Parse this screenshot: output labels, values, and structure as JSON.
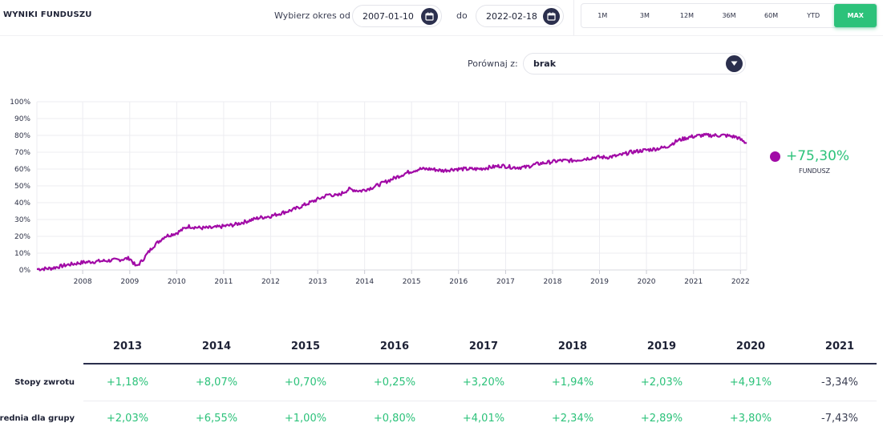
{
  "header": {
    "title": "WYNIKI FUNDUSZU",
    "period_from_label": "Wybierz okres od",
    "date_from": "2007-01-10",
    "to_label": "do",
    "date_to": "2022-02-18",
    "periods": [
      "1M",
      "3M",
      "12M",
      "36M",
      "60M",
      "YTD",
      "MAX"
    ],
    "active_period": "MAX"
  },
  "compare": {
    "label": "Porównaj z:",
    "value": "brak"
  },
  "legend": {
    "value": "+75,30%",
    "name": "FUNDUSZ",
    "color": "#a10aa6"
  },
  "colors": {
    "accent_green": "#2cc27a",
    "line": "#a10aa6",
    "dark": "#2b2f4d"
  },
  "chart_data": {
    "type": "line",
    "title": "",
    "xlabel": "",
    "ylabel": "",
    "x_ticks": [
      "2008",
      "2009",
      "2010",
      "2011",
      "2012",
      "2013",
      "2014",
      "2015",
      "2016",
      "2017",
      "2018",
      "2019",
      "2020",
      "2021",
      "2022"
    ],
    "y_ticks": [
      "0%",
      "10%",
      "20%",
      "30%",
      "40%",
      "50%",
      "60%",
      "70%",
      "80%",
      "90%",
      "100%"
    ],
    "ylim": [
      0,
      100
    ],
    "xlim": [
      "2007-01-10",
      "2022-02-18"
    ],
    "grid": true,
    "series": [
      {
        "name": "FUNDUSZ",
        "x": [
          "2007-01-10",
          "2007-05-01",
          "2007-09-01",
          "2008-01-01",
          "2008-04-01",
          "2008-07-01",
          "2008-10-01",
          "2009-01-01",
          "2009-02-20",
          "2009-04-01",
          "2009-07-01",
          "2009-10-01",
          "2010-01-01",
          "2010-04-01",
          "2010-07-01",
          "2010-10-01",
          "2011-01-01",
          "2011-04-01",
          "2011-07-01",
          "2011-10-01",
          "2012-01-01",
          "2012-04-01",
          "2012-07-01",
          "2012-10-01",
          "2013-01-01",
          "2013-04-01",
          "2013-06-01",
          "2013-09-01",
          "2013-12-01",
          "2014-03-01",
          "2014-06-01",
          "2014-09-01",
          "2014-12-01",
          "2015-03-01",
          "2015-06-01",
          "2015-09-01",
          "2015-12-01",
          "2016-03-01",
          "2016-06-01",
          "2016-09-01",
          "2016-12-01",
          "2017-03-01",
          "2017-06-01",
          "2017-09-01",
          "2017-12-01",
          "2018-03-01",
          "2018-06-01",
          "2018-09-01",
          "2018-12-01",
          "2019-03-01",
          "2019-06-01",
          "2019-09-01",
          "2019-12-01",
          "2020-03-15",
          "2020-06-01",
          "2020-09-01",
          "2020-12-01",
          "2021-03-01",
          "2021-06-01",
          "2021-09-01",
          "2021-12-01",
          "2022-02-18"
        ],
        "y": [
          0.5,
          1,
          3,
          4.5,
          5,
          5.5,
          6,
          7,
          2,
          5,
          14,
          20,
          22,
          26,
          25,
          25,
          26,
          27,
          29,
          31,
          32,
          34,
          36,
          39,
          42,
          45,
          44,
          48,
          47,
          49,
          52,
          55,
          58,
          60,
          60,
          59,
          60,
          60,
          60,
          61,
          62,
          61,
          61,
          63,
          64,
          65,
          65,
          66,
          67,
          67,
          68,
          70,
          71,
          72,
          73,
          77,
          79,
          80,
          80,
          80,
          79,
          75.3
        ]
      }
    ]
  },
  "table": {
    "years": [
      "2013",
      "2014",
      "2015",
      "2016",
      "2017",
      "2018",
      "2019",
      "2020",
      "2021"
    ],
    "rows": [
      {
        "label": "Stopy zwrotu",
        "values": [
          "+1,18%",
          "+8,07%",
          "+0,70%",
          "+0,25%",
          "+3,20%",
          "+1,94%",
          "+2,03%",
          "+4,91%",
          "-3,34%"
        ]
      },
      {
        "label": "Średnia dla grupy",
        "values": [
          "+2,03%",
          "+6,55%",
          "+1,00%",
          "+0,80%",
          "+4,01%",
          "+2,34%",
          "+2,89%",
          "+3,80%",
          "-7,43%"
        ]
      }
    ]
  }
}
